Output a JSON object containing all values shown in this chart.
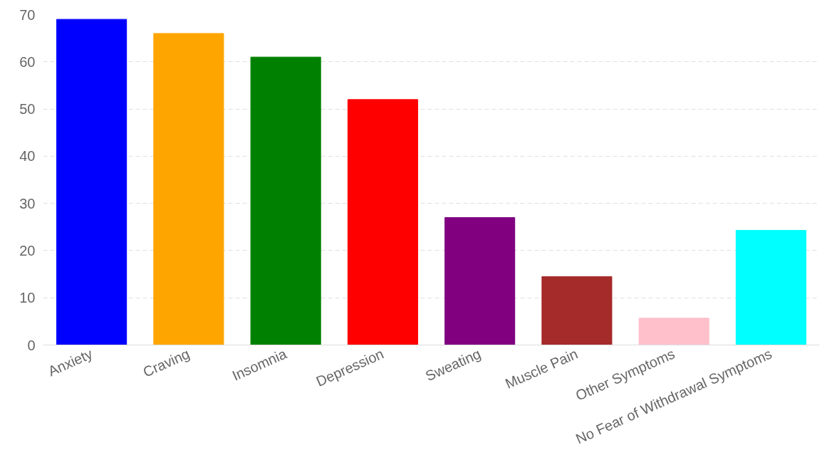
{
  "chart_data": {
    "type": "bar",
    "categories": [
      "Anxiety",
      "Craving",
      "Insomnia",
      "Depression",
      "Sweating",
      "Muscle Pain",
      "Other Symptoms",
      "No Fear of Withdrawal Symptoms"
    ],
    "values": [
      69,
      66,
      61,
      52,
      27,
      14.5,
      5.7,
      24.3
    ],
    "colors": [
      "#0000ff",
      "#ffa500",
      "#008000",
      "#ff0000",
      "#800080",
      "#a52a2a",
      "#ffc0cb",
      "#00ffff"
    ],
    "ylim": [
      0,
      70
    ],
    "yticks": [
      0,
      10,
      20,
      30,
      40,
      50,
      60,
      70
    ],
    "grid": "y"
  }
}
